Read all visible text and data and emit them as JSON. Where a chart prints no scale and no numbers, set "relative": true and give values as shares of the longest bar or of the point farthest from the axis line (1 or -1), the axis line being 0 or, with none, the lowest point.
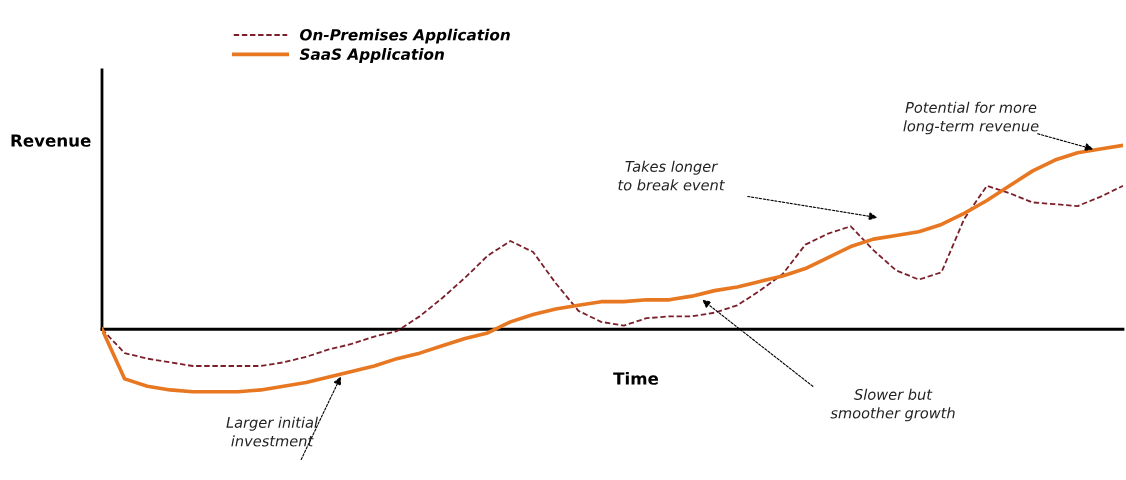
{
  "chart_data": {
    "type": "line",
    "relative": true,
    "ylabel": "Revenue",
    "xlabel": "Time",
    "categories": [
      null,
      null,
      null,
      null,
      null,
      null,
      null,
      null,
      null,
      null,
      null,
      null,
      null,
      null,
      null,
      null,
      null,
      null,
      null,
      null,
      null,
      null,
      null,
      null,
      null,
      null,
      null,
      null,
      null,
      null,
      null,
      null,
      null,
      null,
      null,
      null,
      null,
      null,
      null,
      null,
      null,
      null,
      null,
      null,
      null,
      null
    ],
    "series": [
      {
        "name": "On-Premises Application",
        "color": "#7b1f2a",
        "line_style": "dashed",
        "values": [
          0,
          -0.13,
          -0.16,
          -0.18,
          -0.2,
          -0.2,
          -0.2,
          -0.2,
          -0.18,
          -0.15,
          -0.11,
          -0.08,
          -0.04,
          -0.01,
          0.07,
          0.17,
          0.28,
          0.4,
          0.48,
          0.42,
          0.25,
          0.1,
          0.04,
          0.02,
          0.06,
          0.07,
          0.07,
          0.09,
          0.13,
          0.21,
          0.3,
          0.46,
          0.52,
          0.56,
          0.43,
          0.32,
          0.27,
          0.31,
          0.6,
          0.78,
          0.74,
          0.69,
          0.68,
          0.67,
          0.72,
          0.78
        ]
      },
      {
        "name": "SaaS Application",
        "color": "#e87722",
        "line_style": "solid",
        "values": [
          0,
          -0.27,
          -0.31,
          -0.33,
          -0.34,
          -0.34,
          -0.34,
          -0.33,
          -0.31,
          -0.29,
          -0.26,
          -0.23,
          -0.2,
          -0.16,
          -0.13,
          -0.09,
          -0.05,
          -0.02,
          0.04,
          0.08,
          0.11,
          0.13,
          0.15,
          0.15,
          0.16,
          0.16,
          0.18,
          0.21,
          0.23,
          0.26,
          0.29,
          0.33,
          0.39,
          0.45,
          0.49,
          0.51,
          0.53,
          0.57,
          0.63,
          0.7,
          0.78,
          0.86,
          0.92,
          0.96,
          0.98,
          1.0
        ]
      }
    ],
    "legend": "top left",
    "marker": "none",
    "annotations": [
      "Larger initial investment",
      "Slower but smoother growth",
      "Takes longer to break event",
      "Potential for more long-term revenue"
    ]
  }
}
